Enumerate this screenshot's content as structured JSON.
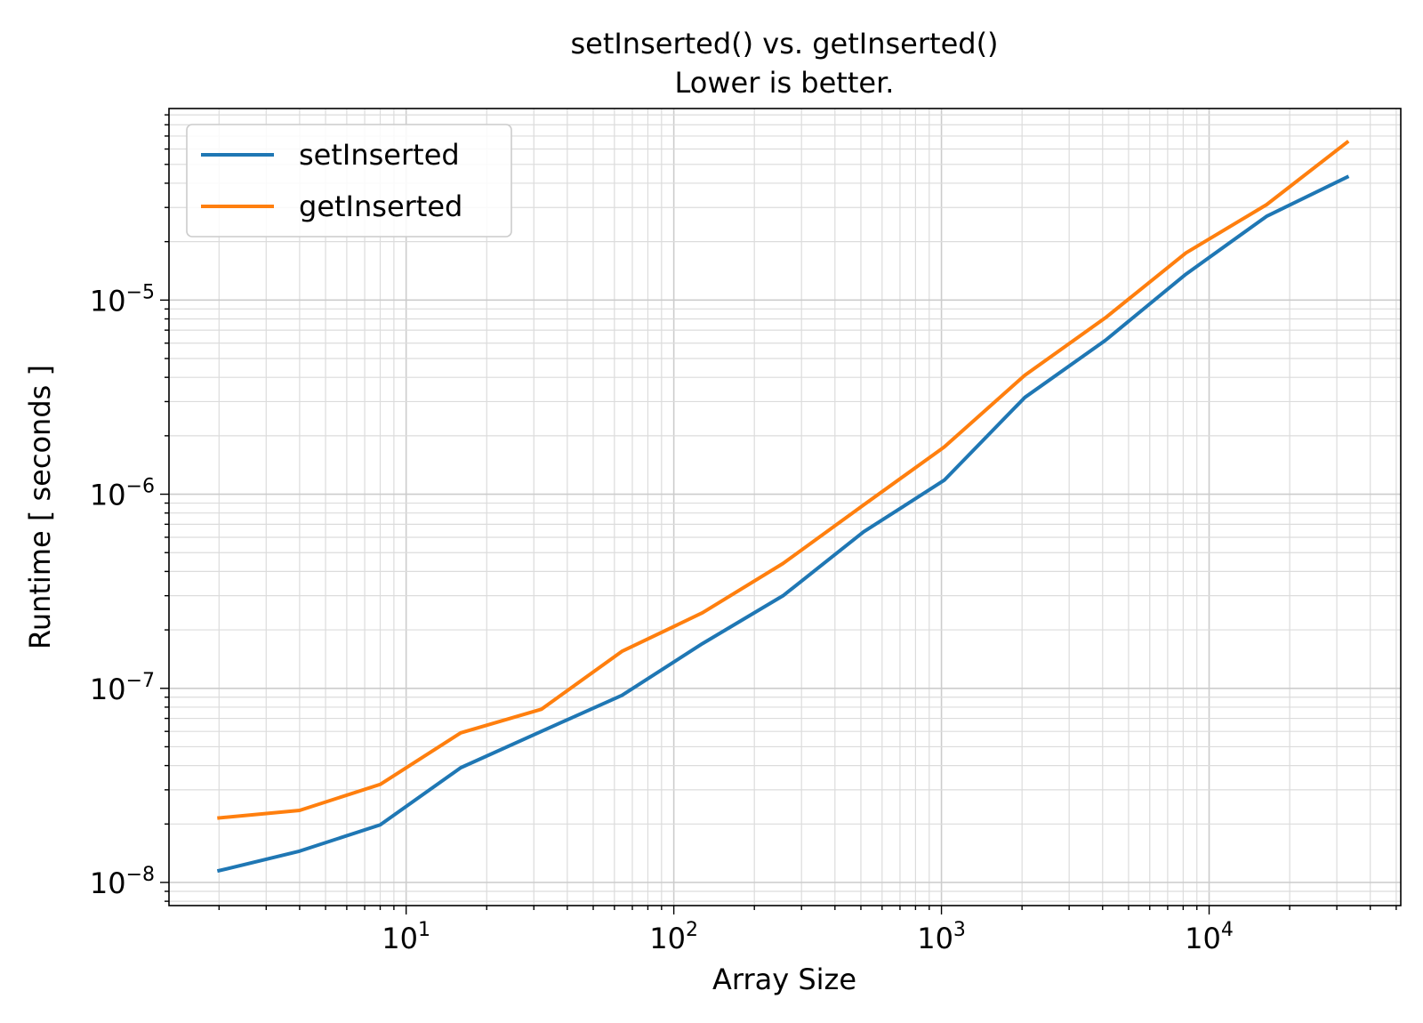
{
  "chart_data": {
    "type": "line",
    "title": "setInserted() vs. getInserted()",
    "subtitle": "Lower is better.",
    "xlabel": "Array Size",
    "ylabel": "Runtime [ seconds ]",
    "xscale": "log",
    "yscale": "log",
    "xlim": [
      1.3,
      52000
    ],
    "ylim": [
      7.6e-09,
      9.7e-05
    ],
    "x_ticks": [
      {
        "value": 10,
        "base": "10",
        "exp": "1"
      },
      {
        "value": 100,
        "base": "10",
        "exp": "2"
      },
      {
        "value": 1000,
        "base": "10",
        "exp": "3"
      },
      {
        "value": 10000,
        "base": "10",
        "exp": "4"
      }
    ],
    "y_ticks": [
      {
        "value": 1e-08,
        "base": "10",
        "exp": "−8"
      },
      {
        "value": 1e-07,
        "base": "10",
        "exp": "−7"
      },
      {
        "value": 1e-06,
        "base": "10",
        "exp": "−6"
      },
      {
        "value": 1e-05,
        "base": "10",
        "exp": "−5"
      }
    ],
    "grid": "major and minor",
    "legend_position": "upper-left",
    "x": [
      2,
      4,
      8,
      16,
      32,
      64,
      128,
      256,
      512,
      1024,
      2048,
      4096,
      8192,
      16384,
      32768
    ],
    "series": [
      {
        "name": "setInserted",
        "color": "#1f77b4",
        "values": [
          1.15e-08,
          1.45e-08,
          1.98e-08,
          3.9e-08,
          6e-08,
          9.2e-08,
          1.7e-07,
          3e-07,
          6.4e-07,
          1.18e-06,
          3.15e-06,
          6.2e-06,
          1.36e-05,
          2.7e-05,
          4.3e-05
        ]
      },
      {
        "name": "getInserted",
        "color": "#ff7f0e",
        "values": [
          2.15e-08,
          2.35e-08,
          3.2e-08,
          5.9e-08,
          7.8e-08,
          1.55e-07,
          2.45e-07,
          4.4e-07,
          8.8e-07,
          1.75e-06,
          4.1e-06,
          8.1e-06,
          1.75e-05,
          3.1e-05,
          6.5e-05
        ]
      }
    ]
  }
}
